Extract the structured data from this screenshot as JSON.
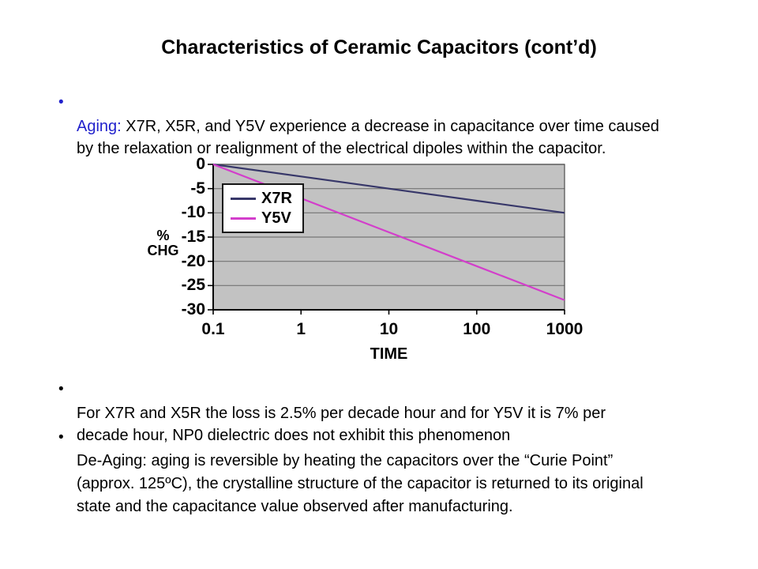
{
  "slide": {
    "title": "Characteristics of Ceramic Capacitors (cont’d)",
    "bullets": {
      "aging": {
        "lead": "Aging:",
        "text": " X7R, X5R, and Y5V experience a decrease in capacitance over time caused\nby the relaxation or realignment of the electrical dipoles within the capacitor."
      },
      "loss": {
        "text": "For X7R and X5R the loss is 2.5% per decade hour and for Y5V it is 7% per\ndecade hour, NP0 dielectric does not exhibit this phenomenon"
      },
      "deaging": {
        "text": "De-Aging: aging is reversible by heating the capacitors over the “Curie Point”\n(approx. 125ºC), the crystalline structure of the capacitor is returned to its original\nstate and the capacitance value observed after manufacturing."
      }
    }
  },
  "colors": {
    "accent_blue": "#2222cc",
    "text": "#000000",
    "background": "#ffffff"
  },
  "chart_data": {
    "type": "line",
    "xlabel": "TIME",
    "ylabel": "% CHG",
    "ylabel_stacked": "%\nCHG",
    "x_scale": "log",
    "x_values": [
      0.1,
      1,
      10,
      100,
      1000
    ],
    "x_ticks": [
      "0.1",
      "1",
      "10",
      "100",
      "1000"
    ],
    "y_ticks": [
      0,
      -5,
      -10,
      -15,
      -20,
      -25,
      -30
    ],
    "ylim": [
      -30,
      0
    ],
    "grid": true,
    "legend_position": "top-left-inside",
    "plot_bg": "#c2c2c2",
    "grid_color": "#757575",
    "axis_color": "#000000",
    "series": [
      {
        "name": "X7R",
        "color": "#373769",
        "values": [
          0,
          -2.5,
          -5,
          -7.5,
          -10
        ]
      },
      {
        "name": "Y5V",
        "color": "#d33ecb",
        "values": [
          0,
          -7,
          -14,
          -21,
          -28
        ]
      }
    ]
  }
}
